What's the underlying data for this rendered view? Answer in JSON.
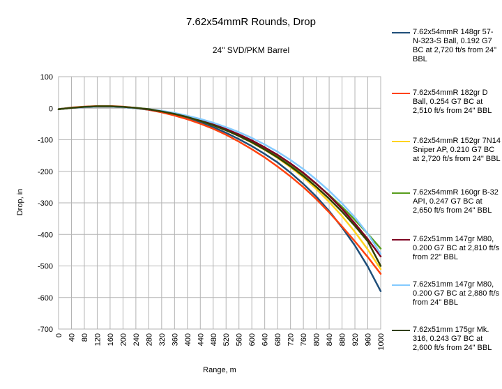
{
  "chart_data": {
    "type": "line",
    "title": "7.62x54mmR Rounds, Drop",
    "subtitle": "24\" SVD/PKM Barrel",
    "xlabel": "Range, m",
    "ylabel": "Drop, in",
    "xlim": [
      0,
      1000
    ],
    "ylim": [
      -700,
      100
    ],
    "x_ticks": [
      0,
      40,
      80,
      120,
      160,
      200,
      240,
      280,
      320,
      360,
      400,
      440,
      480,
      520,
      560,
      600,
      640,
      680,
      720,
      760,
      800,
      840,
      880,
      920,
      960,
      1000
    ],
    "y_ticks": [
      100,
      0,
      -100,
      -200,
      -300,
      -400,
      -500,
      -600,
      -700
    ],
    "grid": true,
    "legend_position": "right",
    "x": [
      0,
      40,
      80,
      120,
      160,
      200,
      240,
      280,
      320,
      360,
      400,
      440,
      480,
      520,
      560,
      600,
      640,
      680,
      720,
      760,
      800,
      840,
      880,
      920,
      960,
      1000
    ],
    "series": [
      {
        "name": "7.62x54mmR 148gr 57-N-323-S Ball, 0.192 G7 BC at 2,720 ft/s from 24\" BBL",
        "color": "#1f4e79",
        "values": [
          -3,
          1,
          4,
          5,
          5,
          3,
          0,
          -5,
          -12,
          -21,
          -32,
          -45,
          -60,
          -78,
          -98,
          -120,
          -145,
          -172,
          -204,
          -240,
          -280,
          -326,
          -378,
          -435,
          -502,
          -580
        ]
      },
      {
        "name": "7.62x54mmR 182gr D Ball, 0.254 G7 BC at 2,510 ft/s from 24\" BBL",
        "color": "#ff420e",
        "values": [
          -3,
          2,
          5,
          7,
          7,
          5,
          1,
          -5,
          -13,
          -23,
          -35,
          -49,
          -65,
          -84,
          -106,
          -130,
          -156,
          -185,
          -216,
          -250,
          -288,
          -330,
          -375,
          -422,
          -472,
          -525
        ]
      },
      {
        "name": "7.62x54mmR 152gr 7N14 Sniper AP, 0.210 G7 BC at 2,720 ft/s from 24\" BBL",
        "color": "#ffd320",
        "values": [
          -3,
          1,
          4,
          5,
          5,
          3,
          0,
          -4,
          -10,
          -18,
          -28,
          -40,
          -54,
          -70,
          -88,
          -109,
          -132,
          -158,
          -187,
          -219,
          -256,
          -297,
          -342,
          -392,
          -448,
          -510
        ]
      },
      {
        "name": "7.62x54mmR 160gr B-32 API, 0.247 G7 BC at 2,650 ft/s from 24\" BBL",
        "color": "#579d1c",
        "values": [
          -3,
          1,
          4,
          6,
          6,
          4,
          1,
          -3,
          -9,
          -17,
          -27,
          -39,
          -52,
          -68,
          -86,
          -106,
          -128,
          -152,
          -179,
          -208,
          -240,
          -275,
          -313,
          -354,
          -398,
          -445
        ]
      },
      {
        "name": "7.62x51mm 147gr M80, 0.200 G7 BC at 2,810 ft/s from 22\" BBL",
        "color": "#7e0021",
        "values": [
          -3,
          1,
          3,
          5,
          5,
          3,
          0,
          -4,
          -10,
          -18,
          -27,
          -38,
          -51,
          -66,
          -83,
          -102,
          -124,
          -148,
          -175,
          -205,
          -239,
          -277,
          -319,
          -365,
          -415,
          -470
        ]
      },
      {
        "name": "7.62x51mm 147gr M80, 0.200 G7 BC at 2,880 ft/s from 24\" BBL",
        "color": "#83caff",
        "values": [
          -3,
          1,
          3,
          5,
          5,
          3,
          0,
          -3,
          -8,
          -15,
          -24,
          -34,
          -46,
          -60,
          -76,
          -94,
          -115,
          -138,
          -164,
          -193,
          -226,
          -262,
          -302,
          -346,
          -398,
          -462
        ]
      },
      {
        "name": "7.62x51mm 175gr Mk. 316, 0.243 G7 BC at 2,600 ft/s from 24\" BBL",
        "color": "#314004",
        "values": [
          -3,
          1,
          4,
          6,
          6,
          4,
          1,
          -3,
          -10,
          -18,
          -28,
          -40,
          -54,
          -70,
          -88,
          -108,
          -131,
          -156,
          -184,
          -215,
          -249,
          -287,
          -328,
          -373,
          -422,
          -500
        ]
      }
    ]
  }
}
